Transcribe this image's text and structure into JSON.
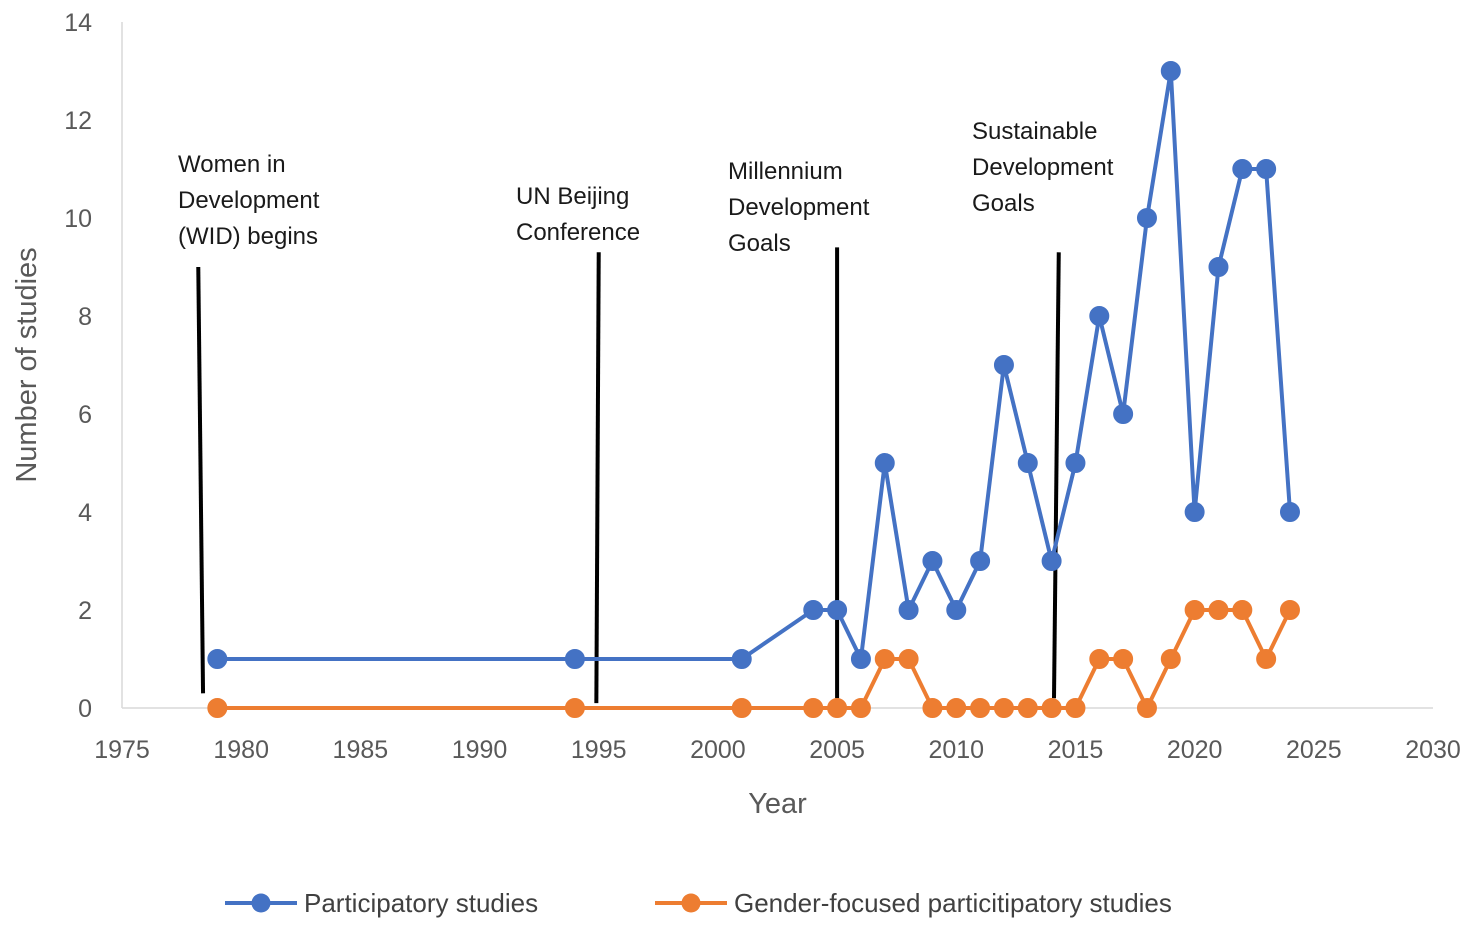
{
  "chart_data": {
    "type": "line",
    "title": "",
    "xlabel": "Year",
    "ylabel": "Number of studies",
    "xlim": [
      1975,
      2030
    ],
    "ylim": [
      0,
      14
    ],
    "xticks": [
      "1975",
      "1980",
      "1985",
      "1990",
      "1995",
      "2000",
      "2005",
      "2010",
      "2015",
      "2020",
      "2025",
      "2030"
    ],
    "yticks": [
      "0",
      "2",
      "4",
      "6",
      "8",
      "10",
      "12",
      "14"
    ],
    "grid": false,
    "legend": "bottom",
    "series": [
      {
        "name": "Participatory studies",
        "color": "#4472C4",
        "x": [
          1979,
          1994,
          2001,
          2004,
          2005,
          2006,
          2007,
          2008,
          2009,
          2010,
          2011,
          2012,
          2013,
          2014,
          2015,
          2016,
          2017,
          2018,
          2019,
          2020,
          2021,
          2022,
          2023,
          2024
        ],
        "values": [
          1,
          1,
          1,
          2,
          2,
          1,
          5,
          2,
          3,
          2,
          3,
          7,
          5,
          3,
          5,
          8,
          6,
          10,
          13,
          4,
          9,
          11,
          11,
          4
        ]
      },
      {
        "name": "Gender-focused particitipatory studies",
        "color": "#ED7D31",
        "x": [
          1979,
          1994,
          2001,
          2004,
          2005,
          2006,
          2007,
          2008,
          2009,
          2010,
          2011,
          2012,
          2013,
          2014,
          2015,
          2016,
          2017,
          2018,
          2019,
          2020,
          2021,
          2022,
          2023,
          2024
        ],
        "values": [
          0,
          0,
          0,
          0,
          0,
          0,
          1,
          1,
          0,
          0,
          0,
          0,
          0,
          0,
          0,
          1,
          1,
          0,
          1,
          2,
          2,
          2,
          1,
          2
        ]
      }
    ],
    "annotations": [
      {
        "lines": [
          "Women in",
          "Development",
          "(WID) begins"
        ],
        "x_start": 1978.2,
        "x_end": 1978.4,
        "y_top": 9,
        "y_bottom": 0.3
      },
      {
        "lines": [
          "UN Beijing",
          "Conference"
        ],
        "x_start": 1995.0,
        "x_end": 1994.9,
        "y_top": 9.3,
        "y_bottom": 0.1
      },
      {
        "lines": [
          "Millennium",
          "Development",
          "Goals"
        ],
        "x_start": 2005.0,
        "x_end": 2005.0,
        "y_top": 9.4,
        "y_bottom": 0.2
      },
      {
        "lines": [
          "Sustainable",
          "Development",
          "Goals"
        ],
        "x_start": 2014.3,
        "x_end": 2014.1,
        "y_top": 9.3,
        "y_bottom": 0.2
      }
    ]
  }
}
